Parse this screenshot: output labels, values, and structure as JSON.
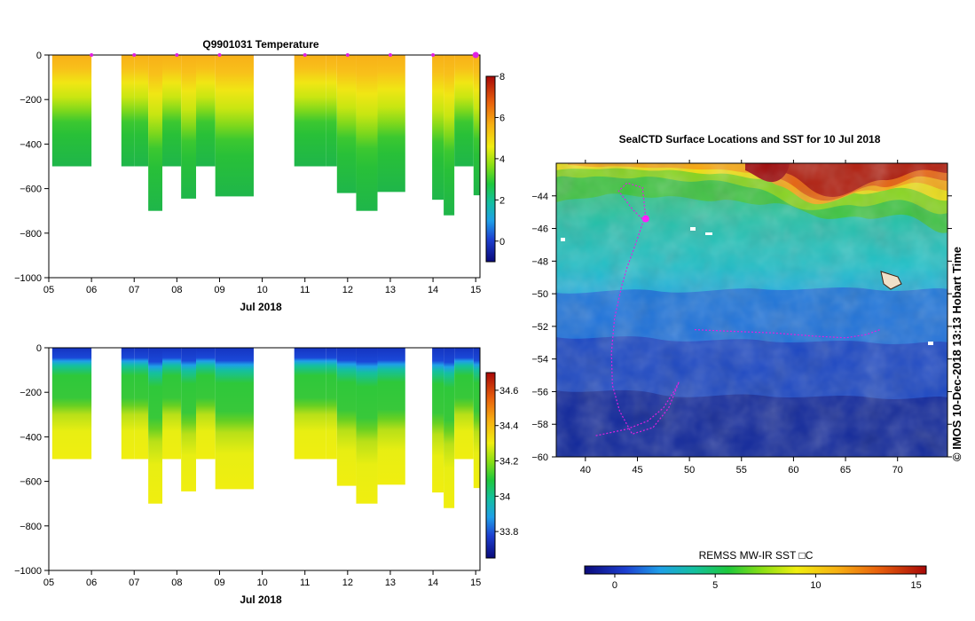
{
  "chart_data": [
    {
      "type": "heatmap",
      "title": "Q9901031  Temperature",
      "xlabel": "Jul 2018",
      "ylabel": "",
      "x_ticks": [
        "05",
        "06",
        "07",
        "08",
        "09",
        "10",
        "11",
        "12",
        "13",
        "14",
        "15"
      ],
      "y_ticks": [
        "0",
        "−200",
        "−400",
        "−600",
        "−800",
        "−1000"
      ],
      "ylim": [
        -1000,
        0
      ],
      "colorbar": {
        "ticks": [
          "0",
          "2",
          "4",
          "6",
          "8"
        ],
        "range": [
          -1,
          8
        ]
      },
      "profile_dates_day": [
        6.0,
        7.0,
        8.0,
        9.0,
        11.0,
        12.0,
        13.0,
        14.0,
        15.0
      ],
      "columns": [
        {
          "x0": 5.08,
          "x1": 6.0,
          "depth": -500
        },
        {
          "x0": 6.7,
          "x1": 7.0,
          "depth": -500
        },
        {
          "x0": 7.0,
          "x1": 7.33,
          "depth": -500
        },
        {
          "x0": 7.33,
          "x1": 7.66,
          "depth": -700
        },
        {
          "x0": 7.66,
          "x1": 8.1,
          "depth": -500
        },
        {
          "x0": 8.1,
          "x1": 8.45,
          "depth": -645
        },
        {
          "x0": 8.45,
          "x1": 8.9,
          "depth": -500
        },
        {
          "x0": 8.9,
          "x1": 9.8,
          "depth": -635
        },
        {
          "x0": 10.75,
          "x1": 11.5,
          "depth": -500
        },
        {
          "x0": 11.5,
          "x1": 11.75,
          "depth": -500
        },
        {
          "x0": 11.75,
          "x1": 12.2,
          "depth": -620
        },
        {
          "x0": 12.2,
          "x1": 12.7,
          "depth": -700
        },
        {
          "x0": 12.7,
          "x1": 13.35,
          "depth": -615
        },
        {
          "x0": 13.98,
          "x1": 14.25,
          "depth": -650
        },
        {
          "x0": 14.25,
          "x1": 14.5,
          "depth": -720
        },
        {
          "x0": 14.5,
          "x1": 14.95,
          "depth": -500
        },
        {
          "x0": 14.95,
          "x1": 15.1,
          "depth": -630
        }
      ]
    },
    {
      "type": "heatmap",
      "title": "",
      "xlabel": "Jul 2018",
      "ylabel": "",
      "x_ticks": [
        "05",
        "06",
        "07",
        "08",
        "09",
        "10",
        "11",
        "12",
        "13",
        "14",
        "15"
      ],
      "y_ticks": [
        "0",
        "−200",
        "−400",
        "−600",
        "−800",
        "−1000"
      ],
      "ylim": [
        -1000,
        0
      ],
      "colorbar": {
        "ticks": [
          "33.8",
          "34",
          "34.2",
          "34.4",
          "34.6"
        ],
        "range": [
          33.65,
          34.7
        ]
      }
    },
    {
      "type": "heatmap",
      "title": "SealCTD Surface Locations and SST for 10 Jul 2018",
      "xlabel": "",
      "ylabel": "",
      "x_ticks": [
        "40",
        "45",
        "50",
        "55",
        "60",
        "65",
        "70"
      ],
      "y_ticks": [
        "−44",
        "−46",
        "−48",
        "−50",
        "−52",
        "−54",
        "−56",
        "−58",
        "−60"
      ],
      "xlim": [
        37.2,
        74.8
      ],
      "ylim": [
        -60,
        -42
      ],
      "side_text": "© IMOS 10-Dec-2018 13:13 Hobart Time",
      "colorbar": {
        "label": "REMSS MW-IR SST □C",
        "ticks": [
          "0",
          "5",
          "10",
          "15"
        ],
        "range": [
          -1.5,
          15.5
        ]
      },
      "track": [
        [
          41,
          -58.7
        ],
        [
          42.5,
          -58.5
        ],
        [
          44,
          -58.3
        ],
        [
          46,
          -57.8
        ],
        [
          47.5,
          -57
        ],
        [
          48.5,
          -56
        ],
        [
          49,
          -55.4
        ],
        [
          48,
          -57
        ],
        [
          46.5,
          -58.2
        ],
        [
          44.5,
          -58.6
        ],
        [
          43.3,
          -57.2
        ],
        [
          42.6,
          -55.6
        ],
        [
          42.5,
          -53.6
        ],
        [
          42.8,
          -51.5
        ],
        [
          43.5,
          -49.5
        ],
        [
          44,
          -48.4
        ],
        [
          44.8,
          -47
        ],
        [
          45.6,
          -45.5
        ],
        [
          44.5,
          -44.8
        ],
        [
          43.2,
          -43.7
        ],
        [
          44,
          -43.2
        ],
        [
          45.5,
          -43.5
        ],
        [
          45.8,
          -45.4
        ]
      ],
      "track2": [
        [
          50.5,
          -52.2
        ],
        [
          54,
          -52.3
        ],
        [
          58,
          -52.4
        ],
        [
          62,
          -52.6
        ],
        [
          65,
          -52.7
        ],
        [
          67,
          -52.5
        ],
        [
          68.3,
          -52.2
        ]
      ],
      "last_position": [
        45.8,
        -45.4
      ]
    }
  ]
}
